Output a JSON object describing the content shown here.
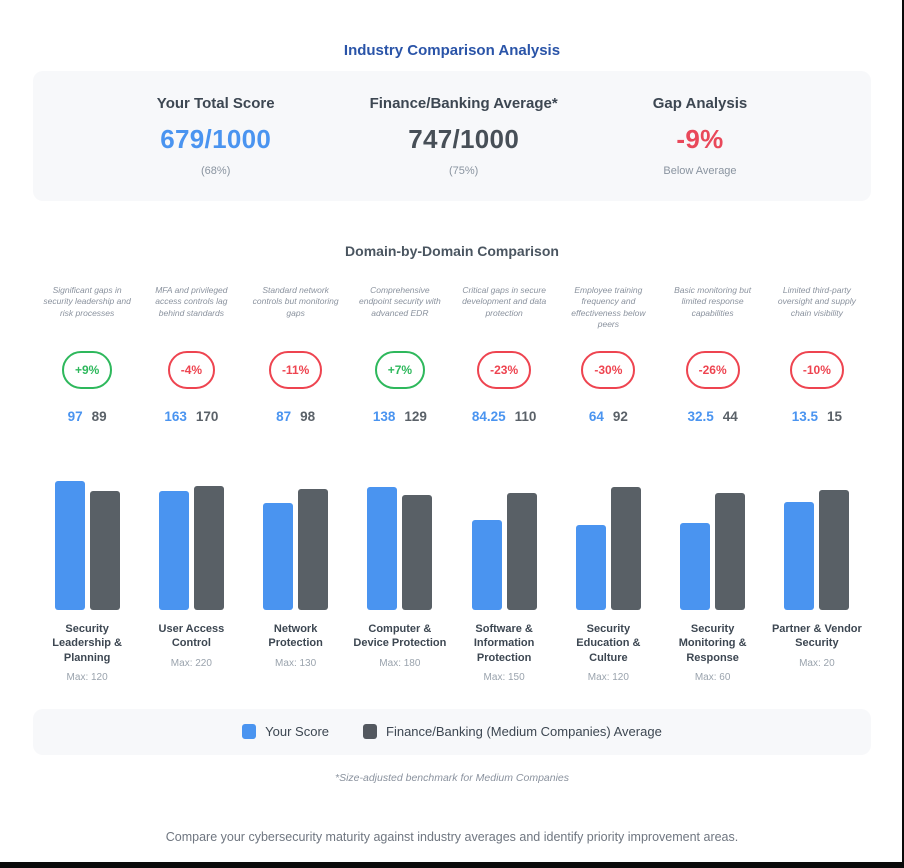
{
  "page": {
    "title": "Industry Comparison Analysis",
    "footnote": "*Size-adjusted benchmark for Medium Companies",
    "caption": "Compare your cybersecurity maturity against industry averages and identify priority improvement areas."
  },
  "summary": {
    "columns": [
      {
        "label": "Your Total Score",
        "value": "679/1000",
        "sub": "(68%)"
      },
      {
        "label": "Finance/Banking Average*",
        "value": "747/1000",
        "sub": "(75%)"
      },
      {
        "label": "Gap Analysis",
        "value": "-9%",
        "sub": "Below Average"
      }
    ]
  },
  "comparison": {
    "heading": "Domain-by-Domain Comparison",
    "domains": [
      {
        "name": "Security Leadership & Planning",
        "description": "Significant gaps in security leadership and risk processes",
        "gap": "+9%",
        "your": 97,
        "avg": 89,
        "max": 120
      },
      {
        "name": "User Access Control",
        "description": "MFA and privileged access controls lag behind standards",
        "gap": "-4%",
        "your": 163,
        "avg": 170,
        "max": 220
      },
      {
        "name": "Network Protection",
        "description": "Standard network controls but monitoring gaps",
        "gap": "-11%",
        "your": 87,
        "avg": 98,
        "max": 130
      },
      {
        "name": "Computer & Device Protection",
        "description": "Comprehensive endpoint security with advanced EDR",
        "gap": "+7%",
        "your": 138,
        "avg": 129,
        "max": 180
      },
      {
        "name": "Software & Information Protection",
        "description": "Critical gaps in secure development and data protection",
        "gap": "-23%",
        "your": 84.25,
        "avg": 110,
        "max": 150
      },
      {
        "name": "Security Education & Culture",
        "description": "Employee training frequency and effectiveness below peers",
        "gap": "-30%",
        "your": 64,
        "avg": 92,
        "max": 120
      },
      {
        "name": "Security Monitoring & Response",
        "description": "Basic monitoring but limited response capabilities",
        "gap": "-26%",
        "your": 32.5,
        "avg": 44,
        "max": 60
      },
      {
        "name": "Partner & Vendor Security",
        "description": "Limited third-party oversight and supply chain visibility",
        "gap": "-10%",
        "your": 13.5,
        "avg": 15,
        "max": 20
      }
    ],
    "max_label_prefix": "Max: "
  },
  "legend": {
    "items": [
      {
        "label": "Your Score",
        "color": "#4a94f0"
      },
      {
        "label": "Finance/Banking (Medium Companies) Average",
        "color": "#53585f"
      }
    ]
  },
  "colors": {
    "title_blue": "#2a54a8",
    "score_blue": "#4a94f0",
    "score_dark": "#474f57",
    "gap_red": "#e9485a",
    "badge_green": "#2eb85c",
    "badge_red": "#ee4450",
    "bar_blue": "#4a94f0",
    "bar_gray": "#596066",
    "card_bg": "#f7f8fa"
  },
  "chart_data": {
    "type": "bar",
    "title": "Domain-by-Domain Comparison",
    "categories": [
      "Security Leadership & Planning",
      "User Access Control",
      "Network Protection",
      "Computer & Device Protection",
      "Software & Information Protection",
      "Security Education & Culture",
      "Security Monitoring & Response",
      "Partner & Vendor Security"
    ],
    "series": [
      {
        "name": "Your Score",
        "values": [
          97,
          163,
          87,
          138,
          84.25,
          64,
          32.5,
          13.5
        ]
      },
      {
        "name": "Finance/Banking (Medium Companies) Average",
        "values": [
          89,
          170,
          98,
          129,
          110,
          92,
          44,
          15
        ]
      }
    ],
    "category_max": [
      120,
      220,
      130,
      180,
      150,
      120,
      60,
      20
    ],
    "gap_percent": [
      "+9%",
      "-4%",
      "-11%",
      "+7%",
      "-23%",
      "-30%",
      "-26%",
      "-10%"
    ],
    "totals": {
      "your": "679/1000",
      "your_pct": "68%",
      "industry": "747/1000",
      "industry_pct": "75%",
      "overall_gap": "-9%"
    },
    "normalization": "bar height proportional to value / category_max",
    "legend_position": "bottom",
    "grid": false
  }
}
